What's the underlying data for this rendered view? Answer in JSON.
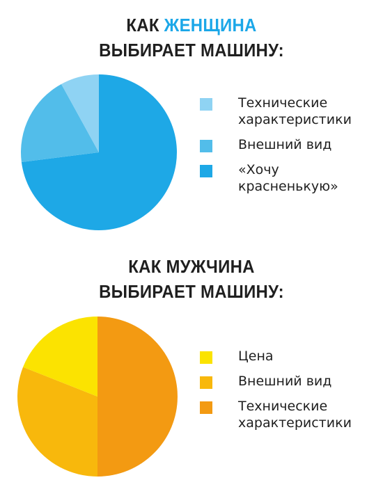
{
  "chart_data": [
    {
      "type": "pie",
      "title": "КАК ЖЕНЩИНА ВЫБИРАЕТ МАШИНУ:",
      "title_parts": {
        "line1_prefix": "КАК ",
        "line1_accent": "ЖЕНЩИНА",
        "line2": "ВЫБИРАЕТ МАШИНУ:"
      },
      "accent_color": "#1ba7e8",
      "slices": [
        {
          "label": "«Хочу\nкрасненькую»",
          "value": 73,
          "color": "#1ea8e6"
        },
        {
          "label": "Внешний вид",
          "value": 19,
          "color": "#52bdea"
        },
        {
          "label": "Технические\nхарактеристики",
          "value": 8,
          "color": "#8fd3f3"
        }
      ],
      "legend": [
        {
          "label": "Технические\nхарактеристики",
          "color": "#8fd3f3"
        },
        {
          "label": "Внешний вид",
          "color": "#52bdea"
        },
        {
          "label": "«Хочу\nкрасненькую»",
          "color": "#1ea8e6"
        }
      ],
      "legend_position": "right"
    },
    {
      "type": "pie",
      "title": "КАК МУЖЧИНА ВЫБИРАЕТ МАШИНУ:",
      "title_parts": {
        "line1": "КАК МУЖЧИНА",
        "line2": "ВЫБИРАЕТ МАШИНУ:"
      },
      "slices": [
        {
          "label": "Технические\nхарактеристики",
          "value": 50,
          "color": "#f39a12"
        },
        {
          "label": "Внешний вид",
          "value": 31,
          "color": "#f8b80c"
        },
        {
          "label": "Цена",
          "value": 19,
          "color": "#fbe301"
        }
      ],
      "legend": [
        {
          "label": "Цена",
          "color": "#fbe301"
        },
        {
          "label": "Внешний вид",
          "color": "#f8b80c"
        },
        {
          "label": "Технические\nхарактеристики",
          "color": "#f39a12"
        }
      ],
      "legend_position": "right"
    }
  ]
}
